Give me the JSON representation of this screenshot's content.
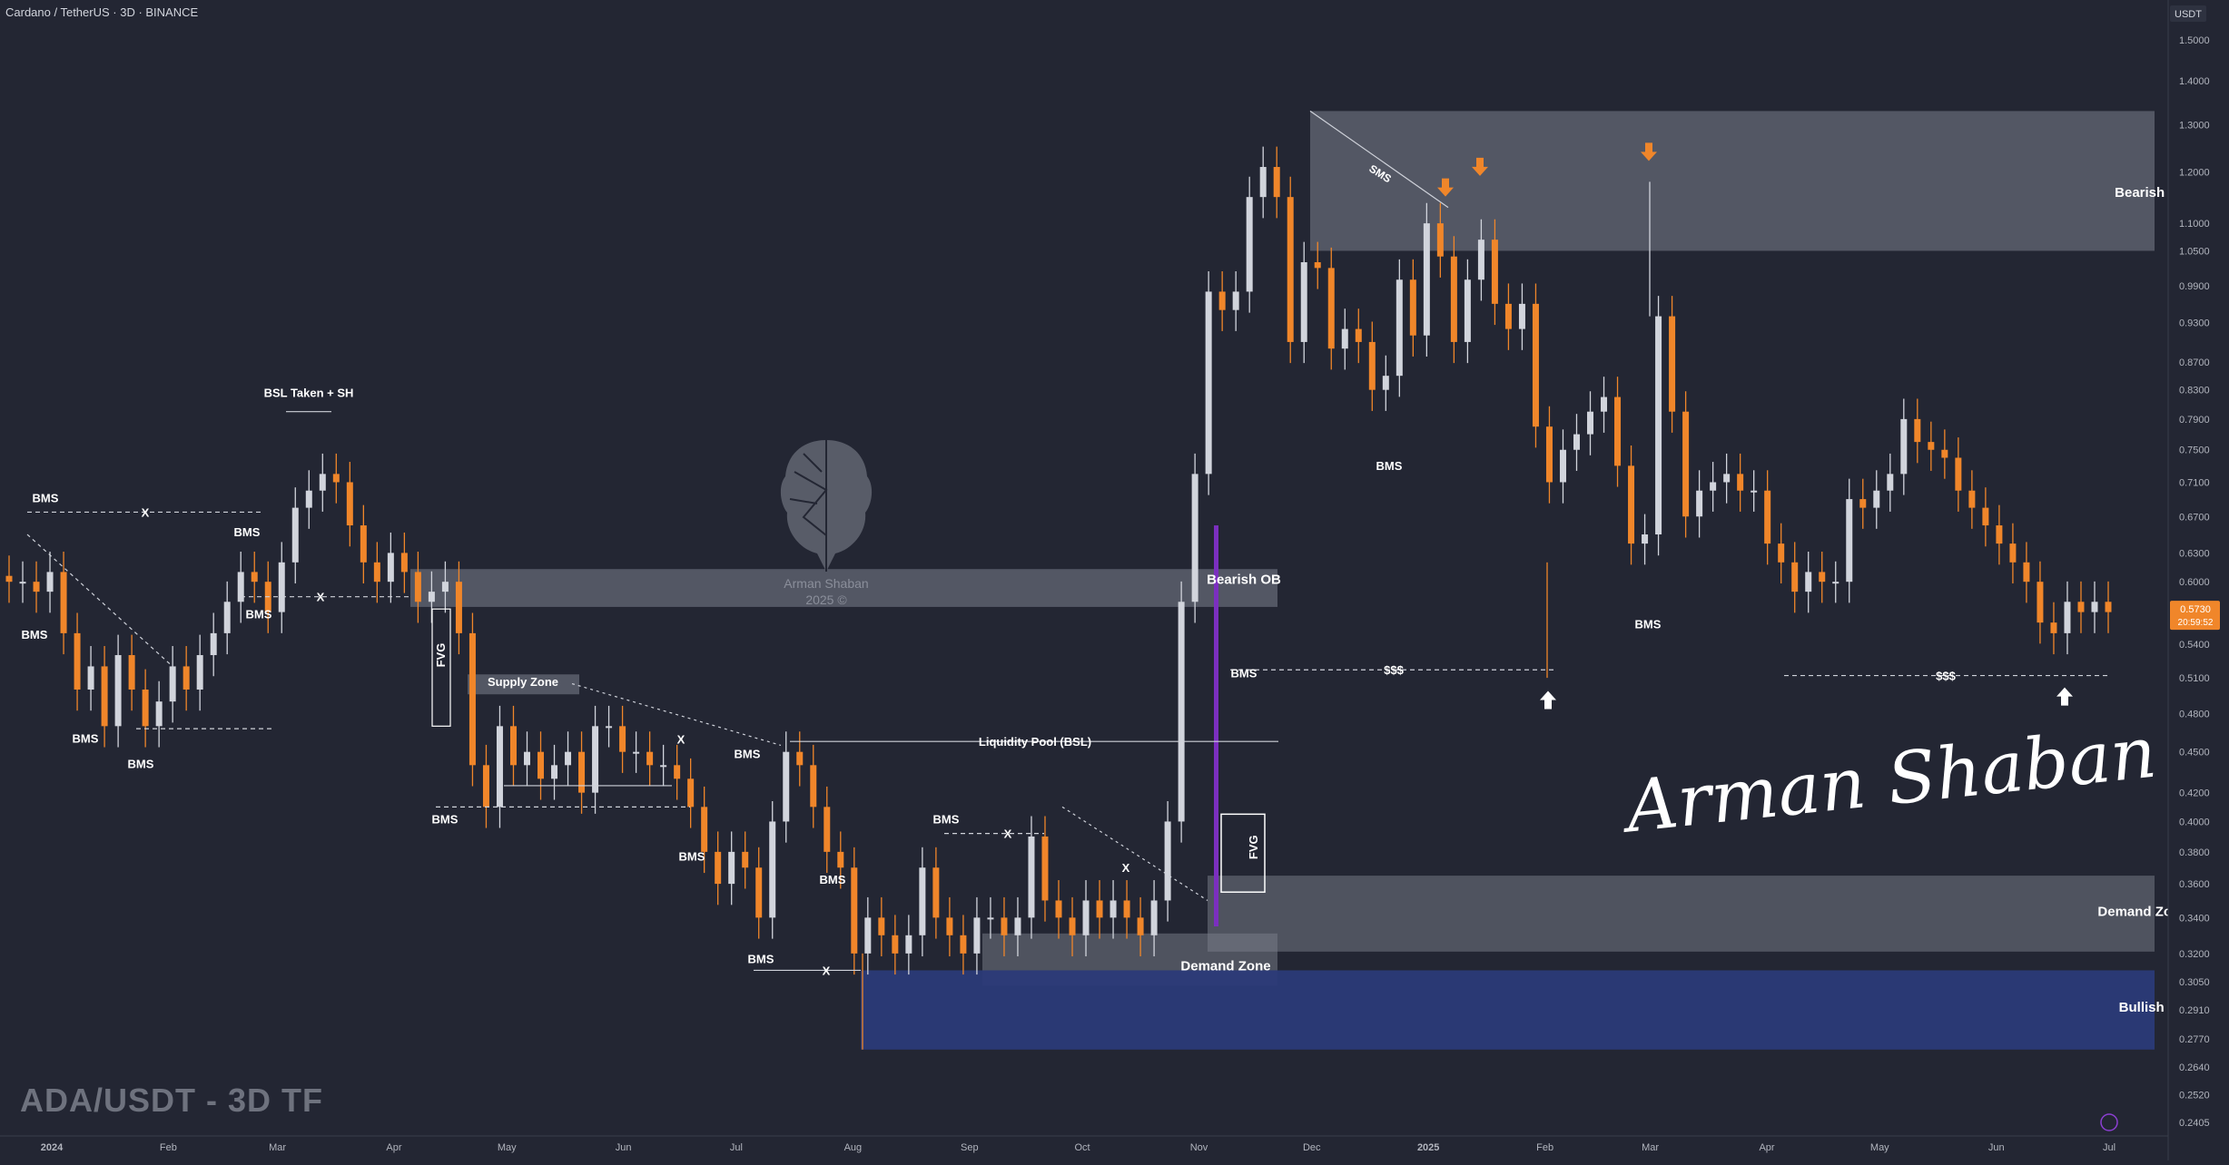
{
  "header": {
    "symbol_line": "Cardano / TetherUS · 3D · BINANCE"
  },
  "overlay": {
    "pair_tf": "ADA/USDT - 3D TF",
    "signature": "Arman Shaban",
    "watermark_name": "Arman Shaban",
    "watermark_year": "2025 ©"
  },
  "price_axis": {
    "unit_label": "USDT",
    "current_price": "0.5730",
    "countdown": "20:59:52"
  },
  "colors": {
    "background": "#232633",
    "bull_candle": "#d1d4dc",
    "bear_candle": "#f0862a",
    "zone_gray": "#7b7f8c",
    "bullish_ob": "#2b3a78",
    "arrow_orange": "#f0862a",
    "purple_line": "#7b2fbf"
  },
  "chart_data": {
    "type": "candlestick",
    "scale": "log",
    "ylim": [
      0.23,
      1.6
    ],
    "y_ticks": [
      "1.5000",
      "1.4000",
      "1.3000",
      "1.2000",
      "1.1000",
      "1.0500",
      "0.9900",
      "0.9300",
      "0.8700",
      "0.8300",
      "0.7900",
      "0.7500",
      "0.7100",
      "0.6700",
      "0.6300",
      "0.6000",
      "0.5700",
      "0.5400",
      "0.5100",
      "0.4800",
      "0.4500",
      "0.4200",
      "0.4000",
      "0.3800",
      "0.3600",
      "0.3400",
      "0.3200",
      "0.3050",
      "0.2910",
      "0.2770",
      "0.2640",
      "0.2520",
      "0.2405"
    ],
    "x_ticks": [
      [
        "2024",
        "2024-01-01"
      ],
      [
        "Feb",
        "2024-02-01"
      ],
      [
        "Mar",
        "2024-03-01"
      ],
      [
        "Apr",
        "2024-04-01"
      ],
      [
        "May",
        "2024-05-01"
      ],
      [
        "Jun",
        "2024-06-01"
      ],
      [
        "Jul",
        "2024-07-01"
      ],
      [
        "Aug",
        "2024-08-01"
      ],
      [
        "Sep",
        "2024-09-01"
      ],
      [
        "Oct",
        "2024-10-01"
      ],
      [
        "Nov",
        "2024-11-01"
      ],
      [
        "Dec",
        "2024-12-01"
      ],
      [
        "2025",
        "2025-01-01"
      ],
      [
        "Feb",
        "2025-02-01"
      ],
      [
        "Mar",
        "2025-03-01"
      ],
      [
        "Apr",
        "2025-04-01"
      ],
      [
        "May",
        "2025-05-01"
      ],
      [
        "Jun",
        "2025-06-01"
      ],
      [
        "Jul",
        "2025-07-01"
      ]
    ],
    "candles_close": [
      0.6,
      0.6,
      0.59,
      0.61,
      0.55,
      0.5,
      0.52,
      0.47,
      0.53,
      0.5,
      0.47,
      0.49,
      0.52,
      0.5,
      0.53,
      0.55,
      0.58,
      0.61,
      0.6,
      0.57,
      0.62,
      0.68,
      0.7,
      0.72,
      0.71,
      0.66,
      0.62,
      0.6,
      0.63,
      0.61,
      0.58,
      0.59,
      0.6,
      0.55,
      0.44,
      0.41,
      0.47,
      0.44,
      0.45,
      0.43,
      0.44,
      0.45,
      0.42,
      0.47,
      0.47,
      0.45,
      0.45,
      0.44,
      0.44,
      0.43,
      0.41,
      0.38,
      0.36,
      0.38,
      0.37,
      0.34,
      0.4,
      0.45,
      0.44,
      0.41,
      0.38,
      0.37,
      0.32,
      0.34,
      0.33,
      0.32,
      0.33,
      0.37,
      0.34,
      0.33,
      0.32,
      0.34,
      0.34,
      0.33,
      0.34,
      0.39,
      0.35,
      0.34,
      0.33,
      0.35,
      0.34,
      0.35,
      0.34,
      0.33,
      0.35,
      0.4,
      0.58,
      0.72,
      0.98,
      0.95,
      0.98,
      1.15,
      1.21,
      1.15,
      0.9,
      1.03,
      1.02,
      0.89,
      0.92,
      0.9,
      0.83,
      0.85,
      1.0,
      0.91,
      1.1,
      1.04,
      0.9,
      1.0,
      1.07,
      0.96,
      0.92,
      0.96,
      0.78,
      0.71,
      0.75,
      0.77,
      0.8,
      0.82,
      0.73,
      0.64,
      0.65,
      0.94,
      0.8,
      0.67,
      0.7,
      0.71,
      0.72,
      0.7,
      0.7,
      0.64,
      0.62,
      0.59,
      0.61,
      0.6,
      0.6,
      0.69,
      0.68,
      0.7,
      0.72,
      0.79,
      0.76,
      0.75,
      0.74,
      0.7,
      0.68,
      0.66,
      0.64,
      0.62,
      0.6,
      0.56,
      0.55,
      0.58,
      0.57,
      0.58,
      0.57
    ],
    "annotations": [
      "BMS",
      "BMS",
      "BMS",
      "BMS",
      "BMS",
      "BMS",
      "BMS",
      "BMS",
      "BMS",
      "BMS",
      "BMS",
      "BMS",
      "BMS",
      "BMS",
      "BSL Taken + SH",
      "Supply Zone",
      "Liquidity Pool (BSL)",
      "FVG",
      "FVG",
      "$$$",
      "$$$",
      "$$$",
      "SMS",
      "Bearish OB",
      "Bearish OB",
      "Demand Zone",
      "Demand Zone",
      "Bullish OB",
      "X",
      "X",
      "X",
      "X",
      "X",
      "X"
    ]
  }
}
